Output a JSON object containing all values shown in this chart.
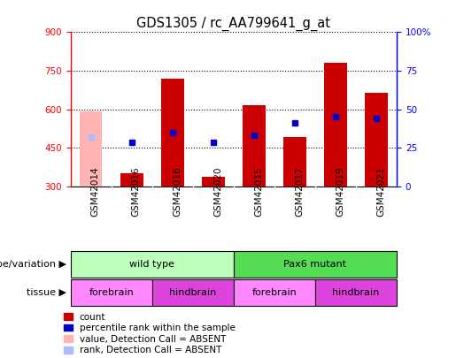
{
  "title": "GDS1305 / rc_AA799641_g_at",
  "samples": [
    "GSM42014",
    "GSM42016",
    "GSM42018",
    "GSM42020",
    "GSM42015",
    "GSM42017",
    "GSM42019",
    "GSM42021"
  ],
  "count_values": [
    590,
    350,
    720,
    335,
    615,
    490,
    780,
    665
  ],
  "count_absent": [
    true,
    false,
    false,
    false,
    false,
    false,
    false,
    false
  ],
  "rank_values": [
    490,
    470,
    510,
    470,
    500,
    545,
    570,
    565
  ],
  "rank_absent": [
    true,
    false,
    false,
    false,
    false,
    false,
    false,
    false
  ],
  "ylim_left": [
    300,
    900
  ],
  "yticks_left": [
    300,
    450,
    600,
    750,
    900
  ],
  "ylim_right": [
    0,
    100
  ],
  "yticks_right": [
    0,
    25,
    50,
    75,
    100
  ],
  "bar_width": 0.55,
  "count_color": "#cc0000",
  "count_absent_color": "#ffb3b3",
  "rank_color": "#0000cc",
  "rank_absent_color": "#aabbff",
  "grid_color": "#000000",
  "genotype_groups": [
    {
      "label": "wild type",
      "start": 0,
      "end": 4,
      "color": "#bbffbb"
    },
    {
      "label": "Pax6 mutant",
      "start": 4,
      "end": 8,
      "color": "#55dd55"
    }
  ],
  "tissue_groups": [
    {
      "label": "forebrain",
      "start": 0,
      "end": 2,
      "color": "#ff88ff"
    },
    {
      "label": "hindbrain",
      "start": 2,
      "end": 4,
      "color": "#dd44dd"
    },
    {
      "label": "forebrain",
      "start": 4,
      "end": 6,
      "color": "#ff88ff"
    },
    {
      "label": "hindbrain",
      "start": 6,
      "end": 8,
      "color": "#dd44dd"
    }
  ],
  "legend_items": [
    {
      "label": "count",
      "color": "#cc0000"
    },
    {
      "label": "percentile rank within the sample",
      "color": "#0000cc"
    },
    {
      "label": "value, Detection Call = ABSENT",
      "color": "#ffb3b3"
    },
    {
      "label": "rank, Detection Call = ABSENT",
      "color": "#aabbff"
    }
  ],
  "label_fontsize": 8,
  "tick_fontsize": 7.5,
  "title_fontsize": 10.5
}
